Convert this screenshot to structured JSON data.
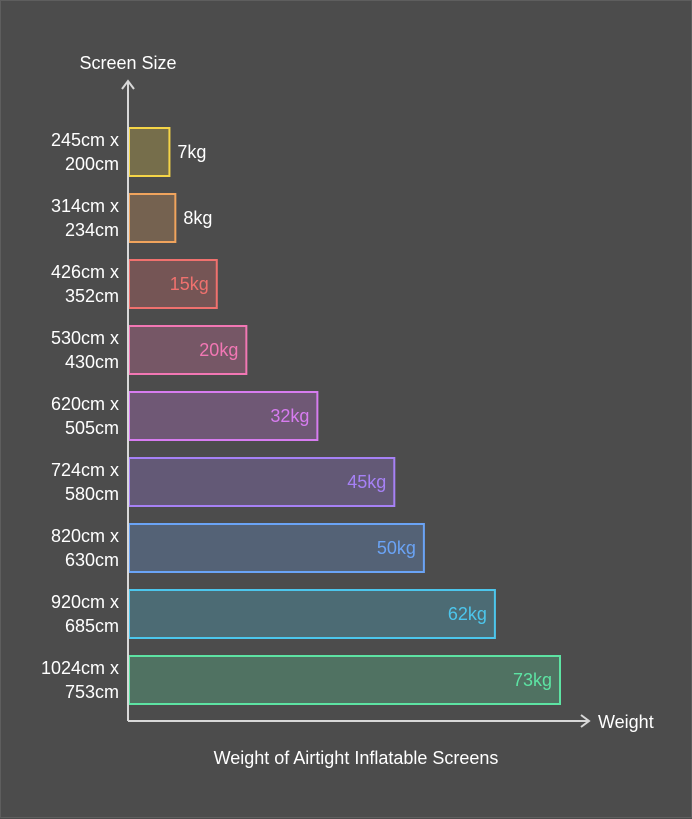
{
  "chart_data": {
    "type": "bar",
    "orientation": "horizontal",
    "title": "Weight of Airtight Inflatable Screens",
    "xlabel": "Weight",
    "ylabel": "Screen Size",
    "grid": false,
    "legend": "none",
    "categories": [
      [
        "245cm x",
        "200cm"
      ],
      [
        "314cm x",
        "234cm"
      ],
      [
        "426cm x",
        "352cm"
      ],
      [
        "530cm x",
        "430cm"
      ],
      [
        "620cm x",
        "505cm"
      ],
      [
        "724cm x",
        "580cm"
      ],
      [
        "820cm x",
        "630cm"
      ],
      [
        "920cm x",
        "685cm"
      ],
      [
        "1024cm x",
        "753cm"
      ]
    ],
    "values": [
      7,
      8,
      15,
      20,
      32,
      45,
      50,
      62,
      73
    ],
    "value_labels": [
      "7kg",
      "8kg",
      "15kg",
      "20kg",
      "32kg",
      "45kg",
      "50kg",
      "62kg",
      "73kg"
    ],
    "unit": "kg",
    "xlim": [
      0,
      73
    ],
    "colors": [
      "#f5d547",
      "#f0a45d",
      "#f0716e",
      "#f277b4",
      "#d77cf0",
      "#a681f5",
      "#6aa3f5",
      "#4cc6ec",
      "#5de3a3"
    ],
    "background": "#4c4c4c",
    "axis_color": "#d8d8d8",
    "text_color": "#ffffff"
  }
}
